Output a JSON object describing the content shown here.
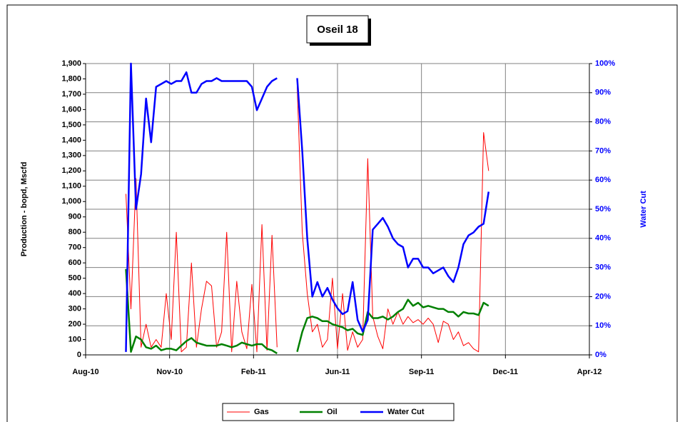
{
  "chart_data": {
    "type": "line",
    "title": "Oseil 18",
    "y_label": "Production - bopd, Mscfd",
    "y2_label": "Water Cut",
    "legend": "bottom",
    "grid": true,
    "xlim": [
      40400,
      41000
    ],
    "xticks": [
      {
        "value": 40400,
        "label": "Aug-10"
      },
      {
        "value": 40500,
        "label": "Nov-10"
      },
      {
        "value": 40600,
        "label": "Feb-11"
      },
      {
        "value": 40700,
        "label": "Jun-11"
      },
      {
        "value": 40800,
        "label": "Sep-11"
      },
      {
        "value": 40900,
        "label": "Dec-11"
      },
      {
        "value": 41000,
        "label": "Apr-12"
      }
    ],
    "ylim": [
      0,
      1900
    ],
    "yticks": [
      0,
      100,
      200,
      300,
      400,
      500,
      600,
      700,
      800,
      900,
      {
        "value": 1000,
        "label": "1,000"
      },
      {
        "value": 1100,
        "label": "1,100"
      },
      {
        "value": 1200,
        "label": "1,200"
      },
      {
        "value": 1300,
        "label": "1,300"
      },
      {
        "value": 1400,
        "label": "1,400"
      },
      {
        "value": 1500,
        "label": "1,500"
      },
      {
        "value": 1600,
        "label": "1,600"
      },
      {
        "value": 1700,
        "label": "1,700"
      },
      {
        "value": 1800,
        "label": "1,800"
      },
      {
        "value": 1900,
        "label": "1,900"
      }
    ],
    "y2lim": [
      0,
      100
    ],
    "y2ticks": [
      {
        "value": 0,
        "label": "0%"
      },
      {
        "value": 10,
        "label": "10%"
      },
      {
        "value": 20,
        "label": "20%"
      },
      {
        "value": 30,
        "label": "30%"
      },
      {
        "value": 40,
        "label": "40%"
      },
      {
        "value": 50,
        "label": "50%"
      },
      {
        "value": 60,
        "label": "60%"
      },
      {
        "value": 70,
        "label": "70%"
      },
      {
        "value": 80,
        "label": "80%"
      },
      {
        "value": 90,
        "label": "90%"
      },
      {
        "value": 100,
        "label": "100%"
      }
    ],
    "x": [
      40448,
      40454,
      40460,
      40466,
      40472,
      40478,
      40484,
      40490,
      40496,
      40502,
      40508,
      40514,
      40520,
      40526,
      40532,
      40538,
      40544,
      40550,
      40556,
      40562,
      40568,
      40574,
      40580,
      40586,
      40592,
      40598,
      40604,
      40610,
      40616,
      40622,
      40628,
      40634,
      40640,
      40646,
      40652,
      40658,
      40664,
      40670,
      40676,
      40682,
      40688,
      40694,
      40700,
      40706,
      40712,
      40718,
      40724,
      40730,
      40736,
      40742,
      40748,
      40754,
      40760,
      40766,
      40772,
      40778,
      40784,
      40790,
      40796,
      40802,
      40808,
      40814,
      40820,
      40826,
      40832,
      40838,
      40844,
      40850,
      40856,
      40862,
      40868,
      40874,
      40880
    ],
    "series": [
      {
        "name": "Gas",
        "color": "#ff0000",
        "width": 1,
        "values": [
          1050,
          300,
          1150,
          50,
          200,
          50,
          100,
          50,
          400,
          100,
          800,
          20,
          50,
          600,
          50,
          300,
          480,
          450,
          50,
          150,
          800,
          20,
          480,
          150,
          40,
          460,
          20,
          850,
          30,
          780,
          50,
          null,
          null,
          null,
          1750,
          800,
          400,
          150,
          200,
          50,
          100,
          500,
          40,
          400,
          30,
          150,
          50,
          100,
          1280,
          250,
          120,
          40,
          300,
          200,
          280,
          200,
          250,
          210,
          230,
          200,
          240,
          200,
          80,
          220,
          200,
          100,
          150,
          60,
          80,
          40,
          20,
          1450,
          1200
        ]
      },
      {
        "name": "Oil",
        "color": "#008000",
        "width": 2.5,
        "values": [
          560,
          20,
          120,
          100,
          50,
          40,
          60,
          30,
          40,
          40,
          30,
          60,
          90,
          110,
          80,
          70,
          60,
          60,
          60,
          70,
          60,
          50,
          60,
          80,
          70,
          60,
          70,
          70,
          40,
          30,
          10,
          null,
          null,
          null,
          20,
          150,
          240,
          250,
          240,
          220,
          220,
          200,
          190,
          180,
          160,
          170,
          140,
          130,
          280,
          240,
          240,
          250,
          230,
          250,
          280,
          300,
          360,
          320,
          340,
          310,
          320,
          310,
          300,
          300,
          280,
          280,
          250,
          280,
          270,
          270,
          260,
          340,
          320
        ]
      },
      {
        "name": "Water Cut",
        "color": "#0000ff",
        "width": 2.5,
        "axis": "y2",
        "values": [
          1,
          100,
          50,
          62,
          88,
          73,
          92,
          93,
          94,
          93,
          94,
          94,
          97,
          90,
          90,
          93,
          94,
          94,
          95,
          94,
          94,
          94,
          94,
          94,
          94,
          92,
          84,
          88,
          92,
          94,
          95,
          null,
          null,
          null,
          95,
          70,
          40,
          20,
          25,
          20,
          23,
          19,
          16,
          14,
          15,
          25,
          12,
          8,
          12,
          43,
          45,
          47,
          44,
          40,
          38,
          37,
          30,
          33,
          33,
          30,
          30,
          28,
          29,
          30,
          27,
          25,
          30,
          38,
          41,
          42,
          44,
          45,
          56
        ]
      }
    ]
  }
}
